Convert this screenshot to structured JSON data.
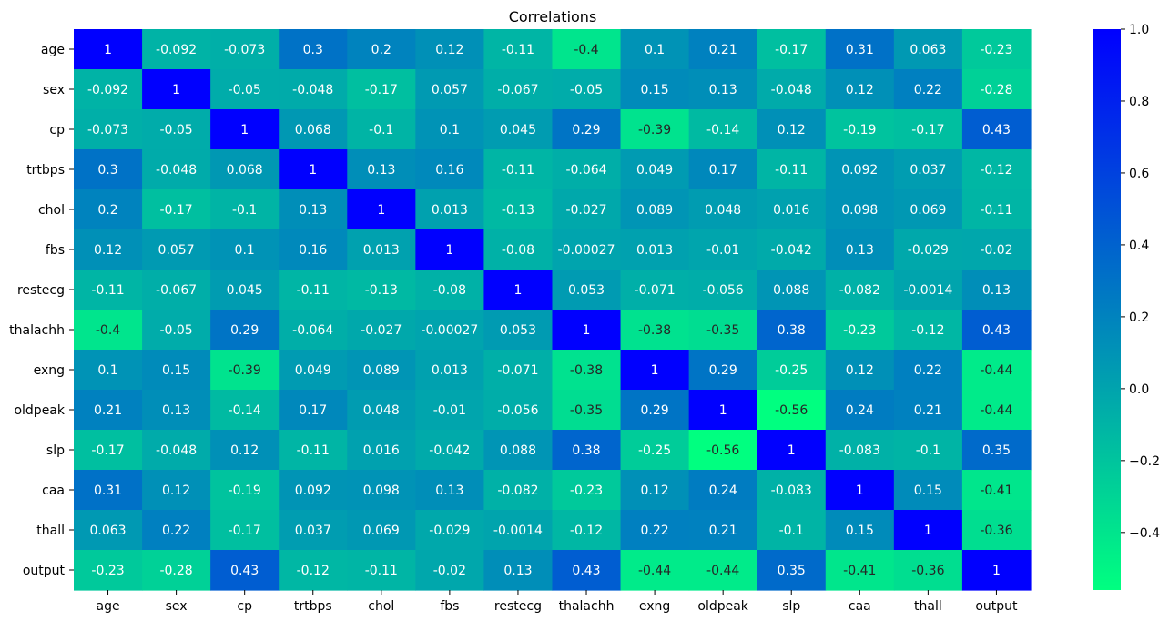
{
  "chart_data": {
    "type": "heatmap",
    "title": "Correlations",
    "variables": [
      "age",
      "sex",
      "cp",
      "trtbps",
      "chol",
      "fbs",
      "restecg",
      "thalachh",
      "exng",
      "oldpeak",
      "slp",
      "caa",
      "thall",
      "output"
    ],
    "matrix": [
      [
        1,
        -0.092,
        -0.073,
        0.3,
        0.2,
        0.12,
        -0.11,
        -0.4,
        0.1,
        0.21,
        -0.17,
        0.31,
        0.063,
        -0.23
      ],
      [
        -0.092,
        1,
        -0.05,
        -0.048,
        -0.17,
        0.057,
        -0.067,
        -0.05,
        0.15,
        0.13,
        -0.048,
        0.12,
        0.22,
        -0.28
      ],
      [
        -0.073,
        -0.05,
        1,
        0.068,
        -0.1,
        0.1,
        0.045,
        0.29,
        -0.39,
        -0.14,
        0.12,
        -0.19,
        -0.17,
        0.43
      ],
      [
        0.3,
        -0.048,
        0.068,
        1,
        0.13,
        0.16,
        -0.11,
        -0.064,
        0.049,
        0.17,
        -0.11,
        0.092,
        0.037,
        -0.12
      ],
      [
        0.2,
        -0.17,
        -0.1,
        0.13,
        1,
        0.013,
        -0.13,
        -0.027,
        0.089,
        0.048,
        0.016,
        0.098,
        0.069,
        -0.11
      ],
      [
        0.12,
        0.057,
        0.1,
        0.16,
        0.013,
        1,
        -0.08,
        -0.00027,
        0.013,
        -0.01,
        -0.042,
        0.13,
        -0.029,
        -0.02
      ],
      [
        -0.11,
        -0.067,
        0.045,
        -0.11,
        -0.13,
        -0.08,
        1,
        0.053,
        -0.071,
        -0.056,
        0.088,
        -0.082,
        -0.0014,
        0.13
      ],
      [
        -0.4,
        -0.05,
        0.29,
        -0.064,
        -0.027,
        -0.00027,
        0.053,
        1,
        -0.38,
        -0.35,
        0.38,
        -0.23,
        -0.12,
        0.43
      ],
      [
        0.1,
        0.15,
        -0.39,
        0.049,
        0.089,
        0.013,
        -0.071,
        -0.38,
        1,
        0.29,
        -0.25,
        0.12,
        0.22,
        -0.44
      ],
      [
        0.21,
        0.13,
        -0.14,
        0.17,
        0.048,
        -0.01,
        -0.056,
        -0.35,
        0.29,
        1,
        -0.56,
        0.24,
        0.21,
        -0.44
      ],
      [
        -0.17,
        -0.048,
        0.12,
        -0.11,
        0.016,
        -0.042,
        0.088,
        0.38,
        -0.25,
        -0.56,
        1,
        -0.083,
        -0.1,
        0.35
      ],
      [
        0.31,
        0.12,
        -0.19,
        0.092,
        0.098,
        0.13,
        -0.082,
        -0.23,
        0.12,
        0.24,
        -0.083,
        1,
        0.15,
        -0.41
      ],
      [
        0.063,
        0.22,
        -0.17,
        0.037,
        0.069,
        -0.029,
        -0.0014,
        -0.12,
        0.22,
        0.21,
        -0.1,
        0.15,
        1,
        -0.36
      ],
      [
        -0.23,
        -0.28,
        0.43,
        -0.12,
        -0.11,
        -0.02,
        0.13,
        0.43,
        -0.44,
        -0.44,
        0.35,
        -0.41,
        -0.36,
        1
      ]
    ],
    "colormap": "winter_r",
    "color_low": "#00ff80",
    "color_high": "#0000ff",
    "vmin": -0.56,
    "vmax": 1,
    "colorbar_ticks": [
      "1.0",
      "0.8",
      "0.6",
      "0.4",
      "0.2",
      "0.0",
      "−0.2",
      "−0.4"
    ],
    "colorbar_tick_values": [
      1.0,
      0.8,
      0.6,
      0.4,
      0.2,
      0.0,
      -0.2,
      -0.4
    ],
    "annotated": true,
    "legend_placement": "right"
  }
}
